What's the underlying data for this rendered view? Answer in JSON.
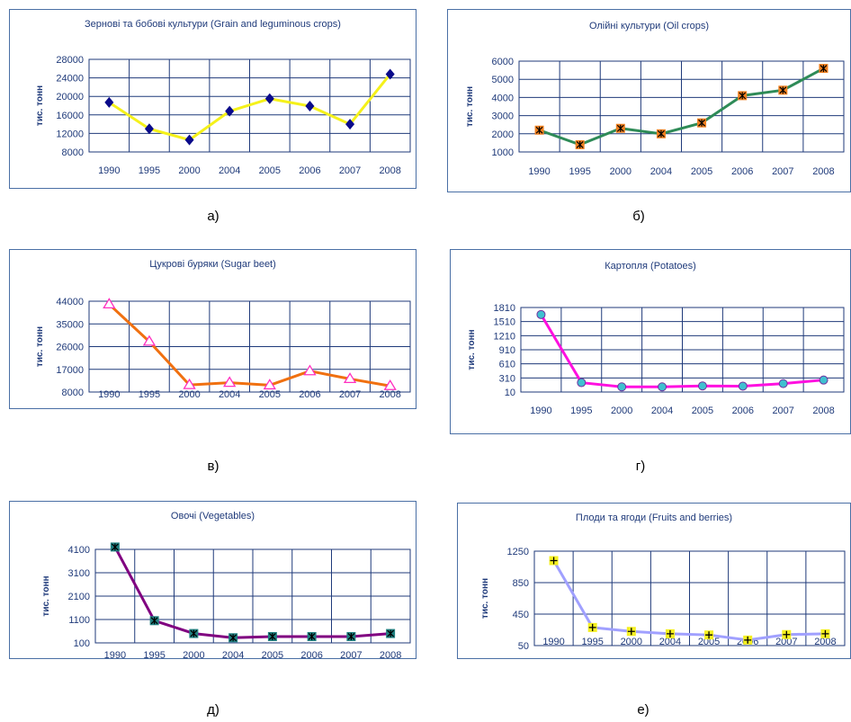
{
  "y_axis_label": "тис. тонн",
  "chart_data": [
    {
      "type": "line",
      "title": "Зернові та бобові культури (Grain and leguminous crops)",
      "categories": [
        "1990",
        "1995",
        "2000",
        "2004",
        "2005",
        "2006",
        "2007",
        "2008"
      ],
      "values": [
        18700,
        13000,
        10600,
        16800,
        19500,
        17900,
        14000,
        24800
      ],
      "yticks": [
        "8000",
        "12000",
        "16000",
        "20000",
        "24000",
        "28000"
      ],
      "ylim": [
        8000,
        28000
      ],
      "line_color": "#f5f11a",
      "marker": "diamond",
      "marker_color": "#0a0a8a",
      "caption": "а)"
    },
    {
      "type": "line",
      "title": "Олійні культури (Oil crops)",
      "categories": [
        "1990",
        "1995",
        "2000",
        "2004",
        "2005",
        "2006",
        "2007",
        "2008"
      ],
      "values": [
        2200,
        1400,
        2300,
        2000,
        2600,
        4100,
        4400,
        5600
      ],
      "yticks": [
        "1000",
        "2000",
        "3000",
        "4000",
        "5000",
        "6000"
      ],
      "ylim": [
        1000,
        6000
      ],
      "line_color": "#2e8b57",
      "marker": "xsquare",
      "marker_color": "#f08020",
      "caption": "б)"
    },
    {
      "type": "line",
      "title": "Цукрові буряки (Sugar beet)",
      "categories": [
        "1990",
        "1995",
        "2000",
        "2004",
        "2005",
        "2006",
        "2007",
        "2008"
      ],
      "values": [
        42800,
        28000,
        10800,
        11700,
        10700,
        16300,
        13200,
        10400
      ],
      "yticks": [
        "8000",
        "17000",
        "26000",
        "35000",
        "44000"
      ],
      "ylim": [
        8000,
        44000
      ],
      "line_color": "#f07010",
      "marker": "triangle",
      "marker_color": "#ff30c0",
      "caption": "в)"
    },
    {
      "type": "line",
      "title": "Картопля (Potatoes)",
      "categories": [
        "1990",
        "1995",
        "2000",
        "2004",
        "2005",
        "2006",
        "2007",
        "2008"
      ],
      "values": [
        1660,
        210,
        120,
        120,
        140,
        135,
        190,
        265
      ],
      "yticks": [
        "10",
        "310",
        "610",
        "910",
        "1210",
        "1510",
        "1810"
      ],
      "ylim": [
        10,
        1810
      ],
      "line_color": "#ff10e0",
      "marker": "circle",
      "marker_color": "#40c0d0",
      "caption": "г)"
    },
    {
      "type": "line",
      "title": "Овочі (Vegetables)",
      "categories": [
        "1990",
        "1995",
        "2000",
        "2004",
        "2005",
        "2006",
        "2007",
        "2008"
      ],
      "values": [
        4200,
        1050,
        500,
        320,
        370,
        370,
        370,
        500
      ],
      "yticks": [
        "100",
        "1100",
        "2100",
        "3100",
        "4100"
      ],
      "ylim": [
        100,
        4100
      ],
      "line_color": "#800080",
      "marker": "xsquare",
      "marker_color": "#208080",
      "caption": "д)"
    },
    {
      "type": "line",
      "title": "Плоди та ягоди (Fruits and berries)",
      "categories": [
        "1990",
        "1995",
        "2000",
        "2004",
        "2005",
        "2006",
        "2007",
        "2008"
      ],
      "values": [
        1130,
        280,
        230,
        200,
        185,
        120,
        190,
        200
      ],
      "yticks": [
        "50",
        "450",
        "850",
        "1250"
      ],
      "ylim": [
        50,
        1250
      ],
      "line_color": "#a0a0ff",
      "marker": "plus",
      "marker_color": "#f5f020",
      "caption": "е)"
    }
  ]
}
